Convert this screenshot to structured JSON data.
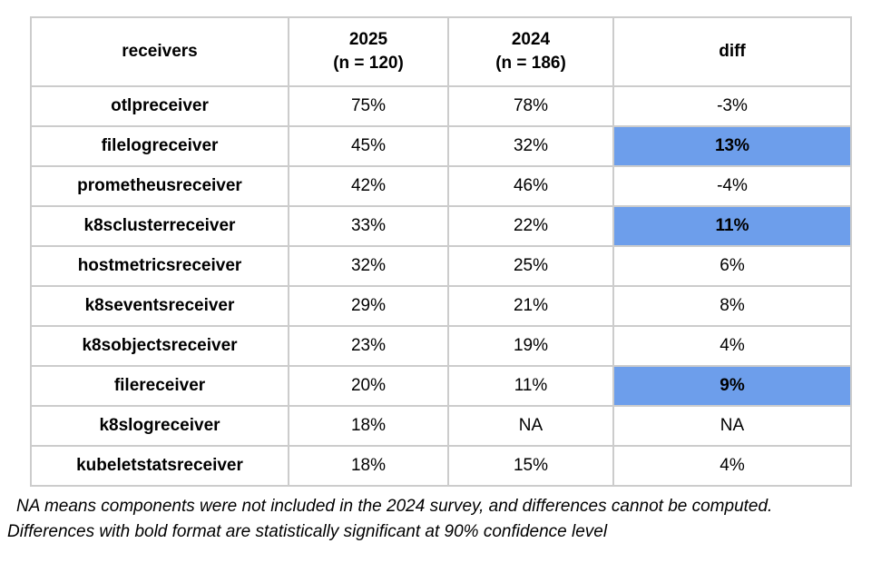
{
  "chart_data": {
    "type": "table",
    "columns": [
      "receivers",
      "2025 (n = 120)",
      "2024 (n = 186)",
      "diff"
    ],
    "rows": [
      {
        "receiver": "otlpreceiver",
        "y2025": "75%",
        "y2024": "78%",
        "diff": "-3%",
        "significant": false
      },
      {
        "receiver": "filelogreceiver",
        "y2025": "45%",
        "y2024": "32%",
        "diff": "13%",
        "significant": true
      },
      {
        "receiver": "prometheusreceiver",
        "y2025": "42%",
        "y2024": "46%",
        "diff": "-4%",
        "significant": false
      },
      {
        "receiver": "k8sclusterreceiver",
        "y2025": "33%",
        "y2024": "22%",
        "diff": "11%",
        "significant": true
      },
      {
        "receiver": "hostmetricsreceiver",
        "y2025": "32%",
        "y2024": "25%",
        "diff": "6%",
        "significant": false
      },
      {
        "receiver": "k8seventsreceiver",
        "y2025": "29%",
        "y2024": "21%",
        "diff": "8%",
        "significant": false
      },
      {
        "receiver": "k8sobjectsreceiver",
        "y2025": "23%",
        "y2024": "19%",
        "diff": "4%",
        "significant": false
      },
      {
        "receiver": "filereceiver",
        "y2025": "20%",
        "y2024": "11%",
        "diff": "9%",
        "significant": true
      },
      {
        "receiver": "k8slogreceiver",
        "y2025": "18%",
        "y2024": "NA",
        "diff": "NA",
        "significant": false
      },
      {
        "receiver": "kubeletstatsreceiver",
        "y2025": "18%",
        "y2024": "15%",
        "diff": "4%",
        "significant": false
      }
    ],
    "legend_note": "Highlighted blue cells mark statistically significant differences"
  },
  "table": {
    "headers": [
      {
        "line1": "receivers",
        "line2": ""
      },
      {
        "line1": "2025",
        "line2": "(n = 120)"
      },
      {
        "line1": "2024",
        "line2": "(n = 186)"
      },
      {
        "line1": "diff",
        "line2": ""
      }
    ]
  },
  "notes": {
    "line1": "NA means components were not included in the 2024 survey, and differences cannot be computed.",
    "line2": "Differences with bold format are statistically significant at 90% confidence level"
  },
  "colors": {
    "highlight": "#6d9eeb",
    "border": "#cccccc",
    "text": "#000000"
  }
}
